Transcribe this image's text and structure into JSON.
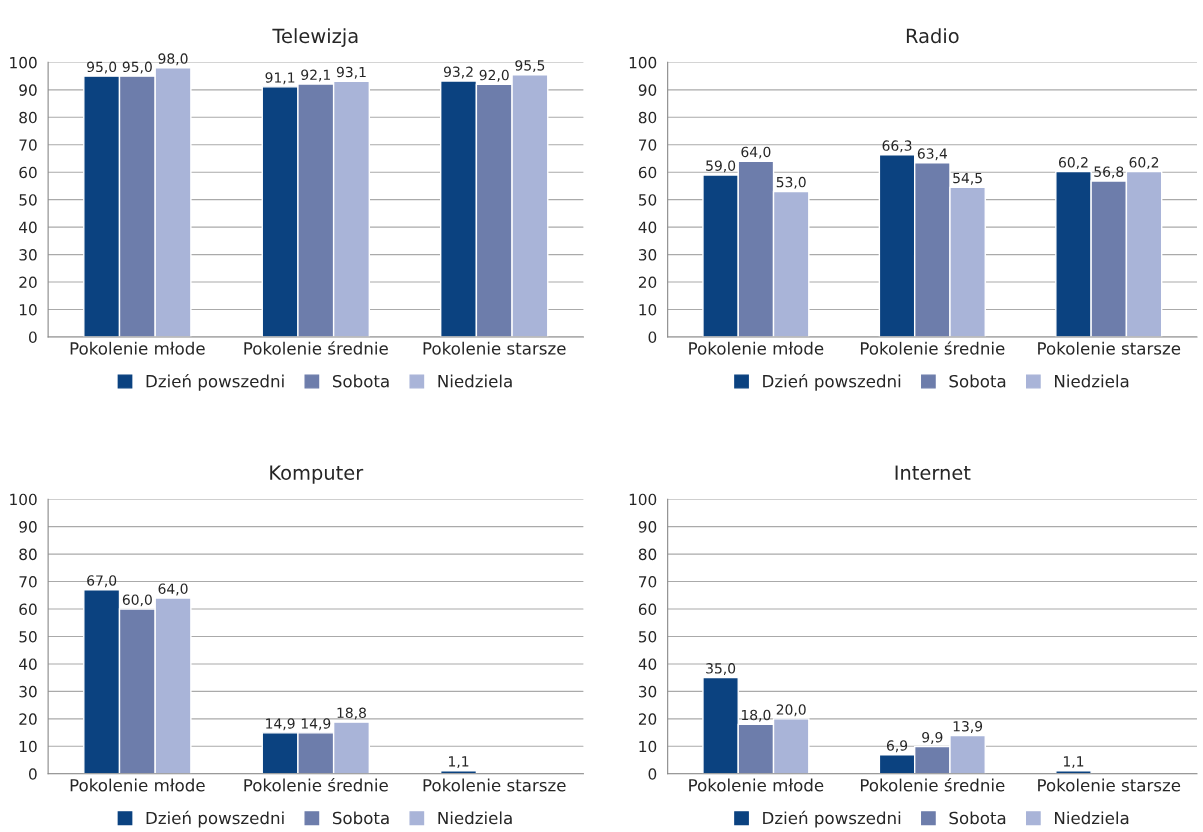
{
  "chart_data": [
    {
      "type": "bar",
      "title": "Telewizja",
      "categories": [
        "Pokolenie młode",
        "Pokolenie średnie",
        "Pokolenie starsze"
      ],
      "ylim": [
        0,
        100
      ],
      "yticks": [
        0,
        10,
        20,
        30,
        40,
        50,
        60,
        70,
        80,
        90,
        100
      ],
      "grid": "y",
      "legend": "bottom",
      "series": [
        {
          "name": "Dzień powszedni",
          "color": "#0b4280",
          "values": [
            95.0,
            91.1,
            93.2
          ],
          "value_labels": [
            "95,0",
            "91,1",
            "93,2"
          ]
        },
        {
          "name": "Sobota",
          "color": "#6d7dab",
          "values": [
            95.0,
            92.1,
            92.0
          ],
          "value_labels": [
            "95,0",
            "92,1",
            "92,0"
          ]
        },
        {
          "name": "Niedziela",
          "color": "#a9b4d8",
          "values": [
            98.0,
            93.1,
            95.5
          ],
          "value_labels": [
            "98,0",
            "93,1",
            "95,5"
          ]
        }
      ]
    },
    {
      "type": "bar",
      "title": "Radio",
      "categories": [
        "Pokolenie młode",
        "Pokolenie średnie",
        "Pokolenie starsze"
      ],
      "ylim": [
        0,
        100
      ],
      "yticks": [
        0,
        10,
        20,
        30,
        40,
        50,
        60,
        70,
        80,
        90,
        100
      ],
      "grid": "y",
      "legend": "bottom",
      "series": [
        {
          "name": "Dzień powszedni",
          "color": "#0b4280",
          "values": [
            59.0,
            66.3,
            60.2
          ],
          "value_labels": [
            "59,0",
            "66,3",
            "60,2"
          ]
        },
        {
          "name": "Sobota",
          "color": "#6d7dab",
          "values": [
            64.0,
            63.4,
            56.8
          ],
          "value_labels": [
            "64,0",
            "63,4",
            "56,8"
          ]
        },
        {
          "name": "Niedziela",
          "color": "#a9b4d8",
          "values": [
            53.0,
            54.5,
            60.2
          ],
          "value_labels": [
            "53,0",
            "54,5",
            "60,2"
          ]
        }
      ]
    },
    {
      "type": "bar",
      "title": "Komputer",
      "categories": [
        "Pokolenie młode",
        "Pokolenie średnie",
        "Pokolenie starsze"
      ],
      "ylim": [
        0,
        100
      ],
      "yticks": [
        0,
        10,
        20,
        30,
        40,
        50,
        60,
        70,
        80,
        90,
        100
      ],
      "grid": "y",
      "legend": "bottom",
      "series": [
        {
          "name": "Dzień powszedni",
          "color": "#0b4280",
          "values": [
            67.0,
            14.9,
            1.1
          ],
          "value_labels": [
            "67,0",
            "14,9",
            "1,1"
          ]
        },
        {
          "name": "Sobota",
          "color": "#6d7dab",
          "values": [
            60.0,
            14.9,
            null
          ],
          "value_labels": [
            "60,0",
            "14,9",
            null
          ]
        },
        {
          "name": "Niedziela",
          "color": "#a9b4d8",
          "values": [
            64.0,
            18.8,
            null
          ],
          "value_labels": [
            "64,0",
            "18,8",
            null
          ]
        }
      ]
    },
    {
      "type": "bar",
      "title": "Internet",
      "categories": [
        "Pokolenie młode",
        "Pokolenie średnie",
        "Pokolenie starsze"
      ],
      "ylim": [
        0,
        100
      ],
      "yticks": [
        0,
        10,
        20,
        30,
        40,
        50,
        60,
        70,
        80,
        90,
        100
      ],
      "grid": "y",
      "legend": "bottom",
      "series": [
        {
          "name": "Dzień powszedni",
          "color": "#0b4280",
          "values": [
            35.0,
            6.9,
            1.1
          ],
          "value_labels": [
            "35,0",
            "6,9",
            "1,1"
          ]
        },
        {
          "name": "Sobota",
          "color": "#6d7dab",
          "values": [
            18.0,
            9.9,
            null
          ],
          "value_labels": [
            "18,0",
            "9,9",
            null
          ]
        },
        {
          "name": "Niedziela",
          "color": "#a9b4d8",
          "values": [
            20.0,
            13.9,
            null
          ],
          "value_labels": [
            "20,0",
            "13,9",
            null
          ]
        }
      ]
    }
  ]
}
